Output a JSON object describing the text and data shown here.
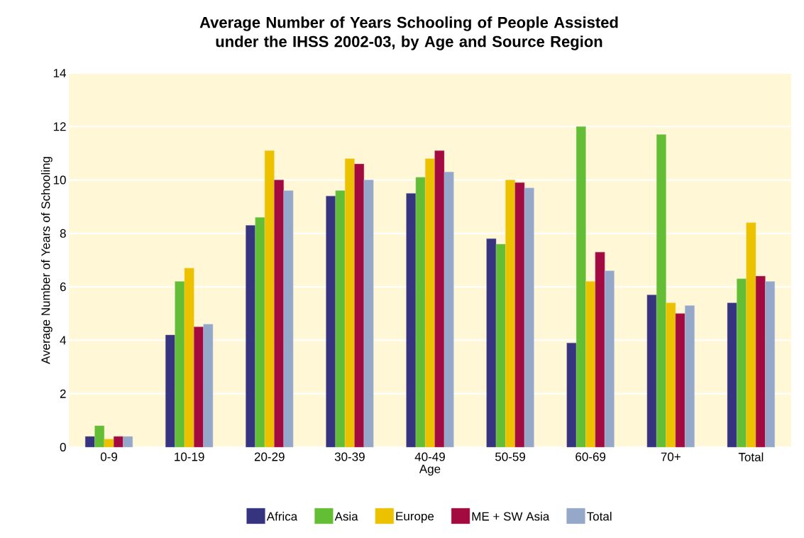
{
  "chart_data": {
    "type": "bar",
    "title": "Average Number of Years Schooling of People Assisted under the IHSS 2002-03, by Age and Source Region",
    "xlabel": "Age",
    "ylabel": "Average Number of Years of Schooling",
    "categories": [
      "0-9",
      "10-19",
      "20-29",
      "30-39",
      "40-49",
      "50-59",
      "60-69",
      "70+",
      "Total"
    ],
    "series": [
      {
        "name": "Africa",
        "color": "#36337f",
        "values": [
          0.4,
          4.2,
          8.3,
          9.4,
          9.5,
          7.8,
          3.9,
          5.7,
          5.4
        ]
      },
      {
        "name": "Asia",
        "color": "#63bd35",
        "values": [
          0.8,
          6.2,
          8.6,
          9.6,
          10.1,
          7.6,
          12.0,
          11.7,
          6.3
        ]
      },
      {
        "name": "Europe",
        "color": "#ecc100",
        "values": [
          0.3,
          6.7,
          11.1,
          10.8,
          10.8,
          10.0,
          6.2,
          5.4,
          8.4
        ]
      },
      {
        "name": "ME + SW Asia",
        "color": "#a30b40",
        "values": [
          0.4,
          4.5,
          10.0,
          10.6,
          11.1,
          9.9,
          7.3,
          5.0,
          6.4
        ]
      },
      {
        "name": "Total",
        "color": "#95a8c9",
        "values": [
          0.4,
          4.6,
          9.6,
          10.0,
          10.3,
          9.7,
          6.6,
          5.3,
          6.2
        ]
      }
    ],
    "ylim": [
      0,
      14
    ],
    "yticks": [
      0,
      2,
      4,
      6,
      8,
      10,
      12,
      14
    ],
    "grid": "y",
    "legend": "bottom"
  }
}
